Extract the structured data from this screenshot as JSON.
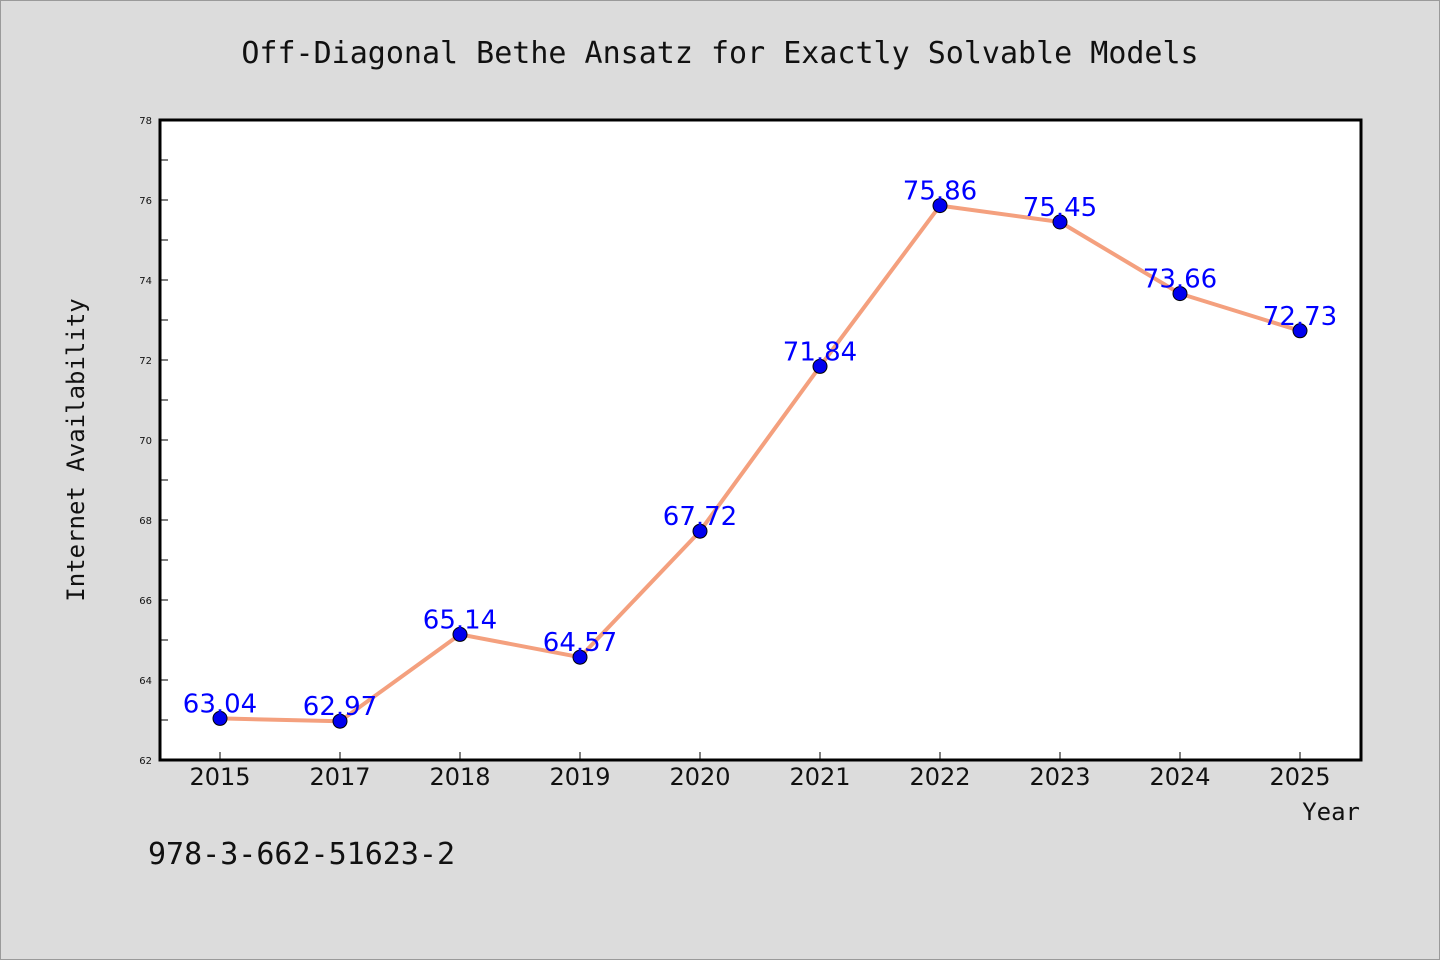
{
  "footer": {
    "isbn": "978-3-662-51623-2"
  },
  "colors": {
    "background": "#dcdcdc",
    "plot_background": "#ffffff",
    "line": "#f4a07e",
    "marker": "#0000ee",
    "data_label": "#0000ff"
  },
  "chart_data": {
    "type": "line",
    "title": "Off-Diagonal Bethe Ansatz for Exactly Solvable Models",
    "xlabel": "Year",
    "ylabel": "Internet Availability",
    "categories": [
      "2015",
      "2017",
      "2018",
      "2019",
      "2020",
      "2021",
      "2022",
      "2023",
      "2024",
      "2025"
    ],
    "series": [
      {
        "values": [
          63.04,
          62.97,
          65.14,
          64.57,
          67.72,
          71.84,
          75.86,
          75.45,
          73.66,
          72.73
        ],
        "labels": [
          "63.04",
          "62.97",
          "65.14",
          "64.57",
          "67.72",
          "71.84",
          "75.86",
          "75.45",
          "73.66",
          "72.73"
        ]
      }
    ],
    "ylim": [
      62,
      78
    ],
    "yticks": [
      "62",
      "64",
      "66",
      "68",
      "70",
      "72",
      "74",
      "76",
      "78"
    ],
    "ytick_values": [
      62,
      64,
      66,
      68,
      70,
      72,
      74,
      76,
      78
    ],
    "grid": false,
    "legend": "none"
  }
}
